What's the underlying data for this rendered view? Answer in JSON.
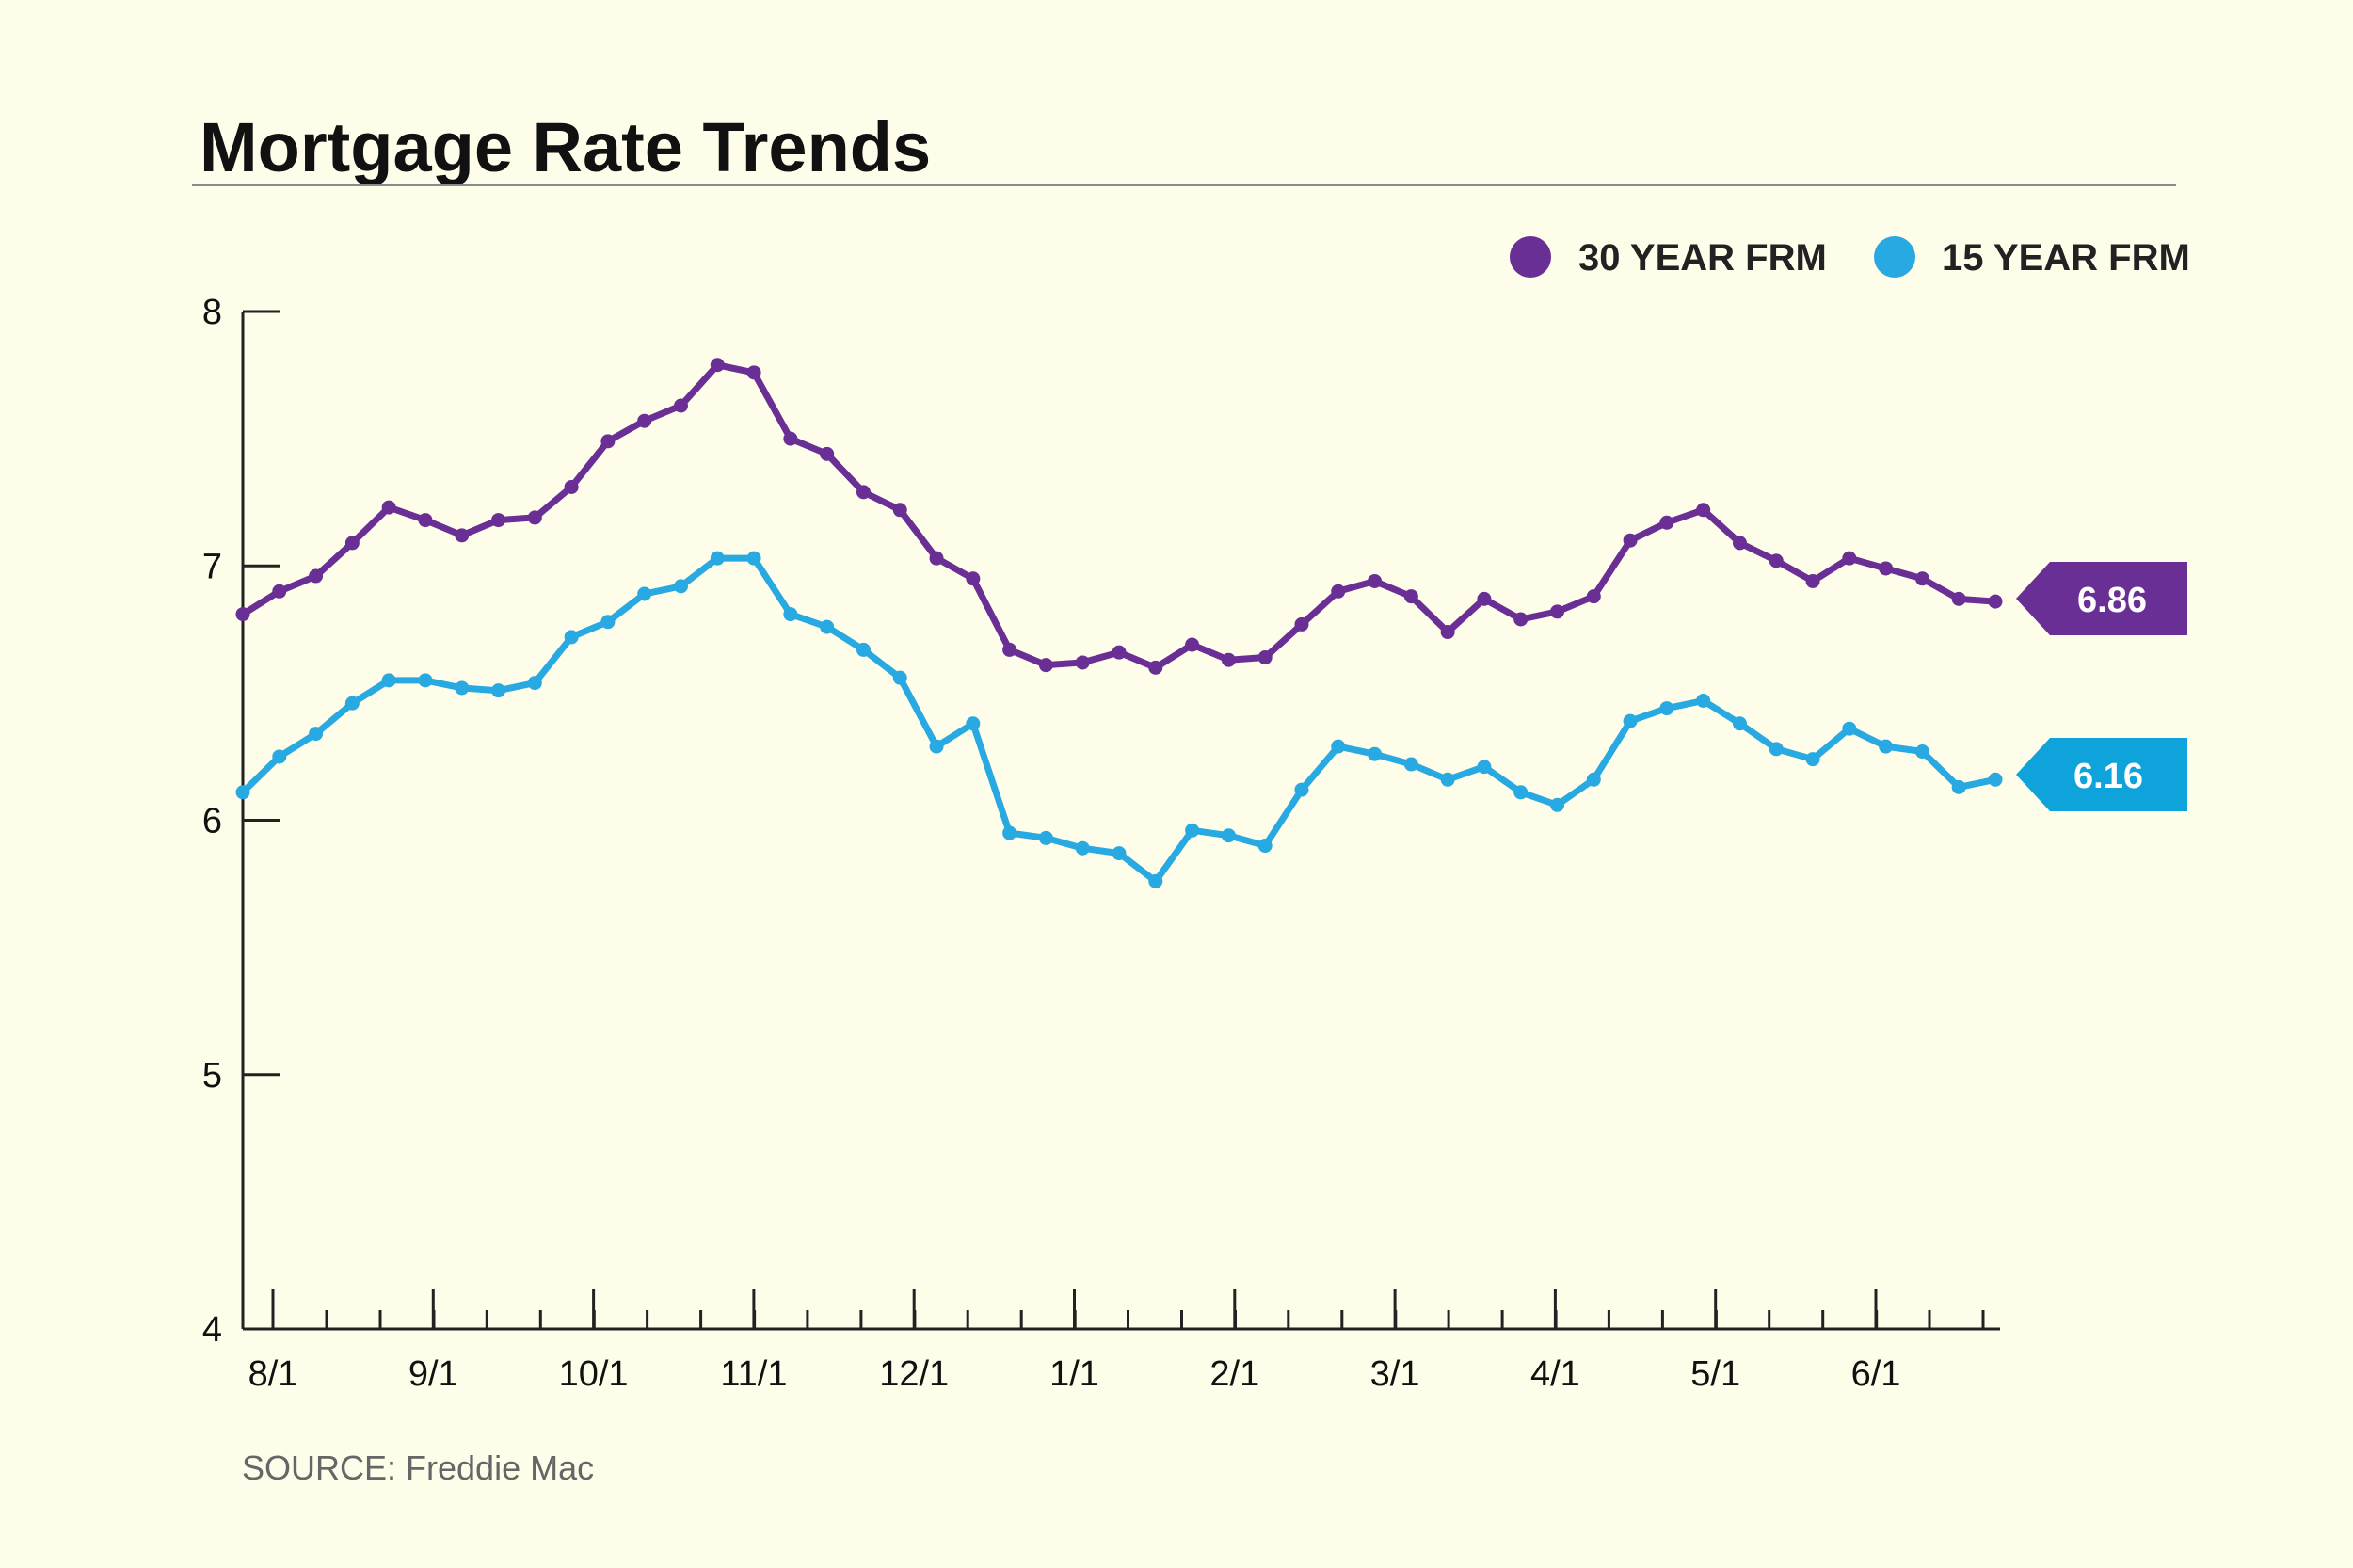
{
  "chart_data": {
    "type": "line",
    "title": "Mortgage Rate Trends",
    "source": "SOURCE: Freddie Mac",
    "ylim": [
      4,
      8
    ],
    "y_ticks": [
      "4",
      "5",
      "6",
      "7",
      "8"
    ],
    "x_ticks": [
      "8/1",
      "9/1",
      "10/1",
      "11/1",
      "12/1",
      "1/1",
      "2/1",
      "3/1",
      "4/1",
      "5/1",
      "6/1"
    ],
    "legend_position": "top-right",
    "grid": false,
    "series": [
      {
        "name": "30 YEAR FRM",
        "color": "#6a2f95",
        "end_label": "6.86",
        "values": [
          6.81,
          6.9,
          6.96,
          7.09,
          7.23,
          7.18,
          7.12,
          7.18,
          7.19,
          7.31,
          7.49,
          7.57,
          7.63,
          7.79,
          7.76,
          7.5,
          7.44,
          7.29,
          7.22,
          7.03,
          6.95,
          6.67,
          6.61,
          6.62,
          6.66,
          6.6,
          6.69,
          6.63,
          6.64,
          6.77,
          6.9,
          6.94,
          6.88,
          6.74,
          6.87,
          6.79,
          6.82,
          6.88,
          7.1,
          7.17,
          7.22,
          7.09,
          7.02,
          6.94,
          7.03,
          6.99,
          6.95,
          6.87,
          6.86
        ]
      },
      {
        "name": "15 YEAR FRM",
        "color": "#29a9e1",
        "end_label": "6.16",
        "values": [
          6.11,
          6.25,
          6.34,
          6.46,
          6.55,
          6.55,
          6.52,
          6.51,
          6.54,
          6.72,
          6.78,
          6.89,
          6.92,
          7.03,
          7.03,
          6.81,
          6.76,
          6.67,
          6.56,
          6.29,
          6.38,
          5.95,
          5.93,
          5.89,
          5.87,
          5.76,
          5.96,
          5.94,
          5.9,
          6.12,
          6.29,
          6.26,
          6.22,
          6.16,
          6.21,
          6.11,
          6.06,
          6.16,
          6.39,
          6.44,
          6.47,
          6.38,
          6.28,
          6.24,
          6.36,
          6.29,
          6.27,
          6.13,
          6.16
        ]
      }
    ]
  }
}
